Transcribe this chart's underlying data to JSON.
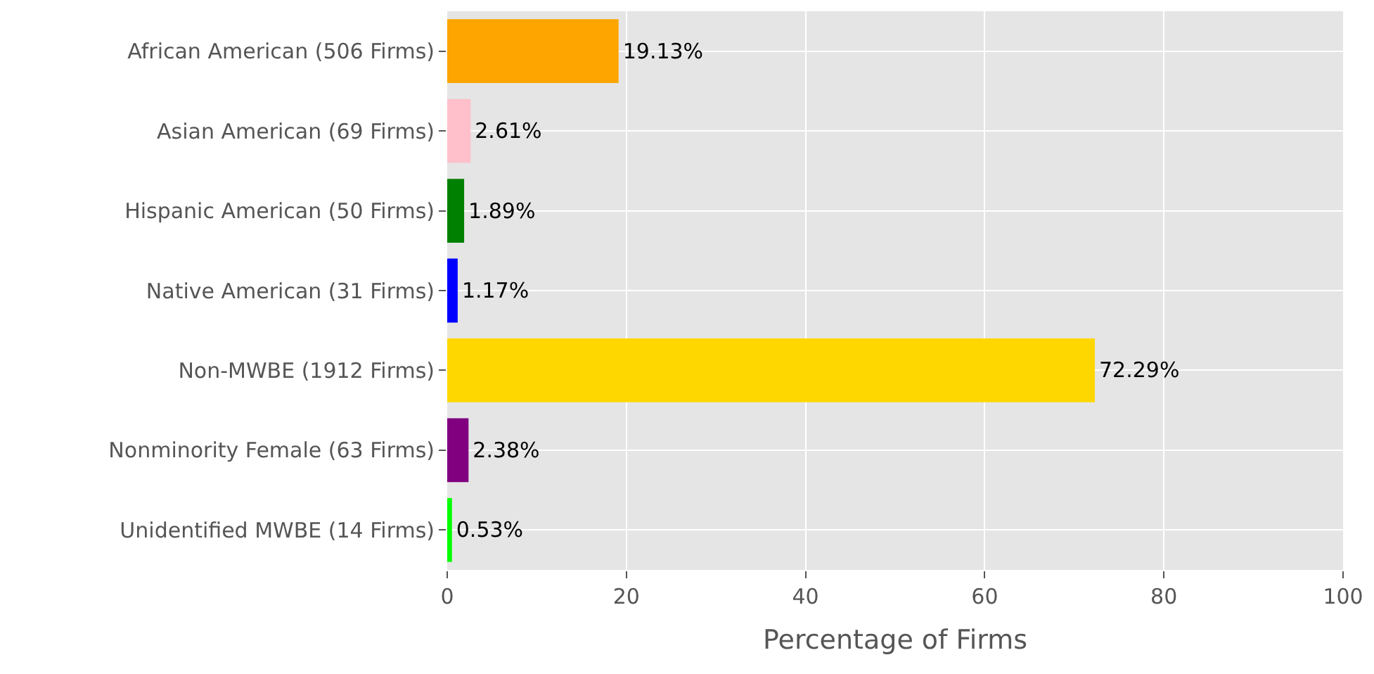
{
  "chart_data": {
    "type": "bar",
    "orientation": "horizontal",
    "xlabel": "Percentage of Firms",
    "categories": [
      "African American (506 Firms)",
      "Asian American (69 Firms)",
      "Hispanic American (50 Firms)",
      "Native American (31 Firms)",
      "Non-MWBE (1912 Firms)",
      "Nonminority Female (63 Firms)",
      "Unidentified MWBE (14 Firms)"
    ],
    "values": [
      19.13,
      2.61,
      1.89,
      1.17,
      72.29,
      2.38,
      0.53
    ],
    "colors": [
      "#ffa500",
      "#ffc0cb",
      "#008000",
      "#0000ff",
      "#ffd700",
      "#800080",
      "#00ff00"
    ],
    "value_labels": [
      "19.13%",
      "2.61%",
      "1.89%",
      "1.17%",
      "72.29%",
      "2.38%",
      "0.53%"
    ],
    "xlim": [
      0,
      100
    ],
    "xticks": [
      0,
      20,
      40,
      60,
      80,
      100
    ],
    "grid": true
  }
}
